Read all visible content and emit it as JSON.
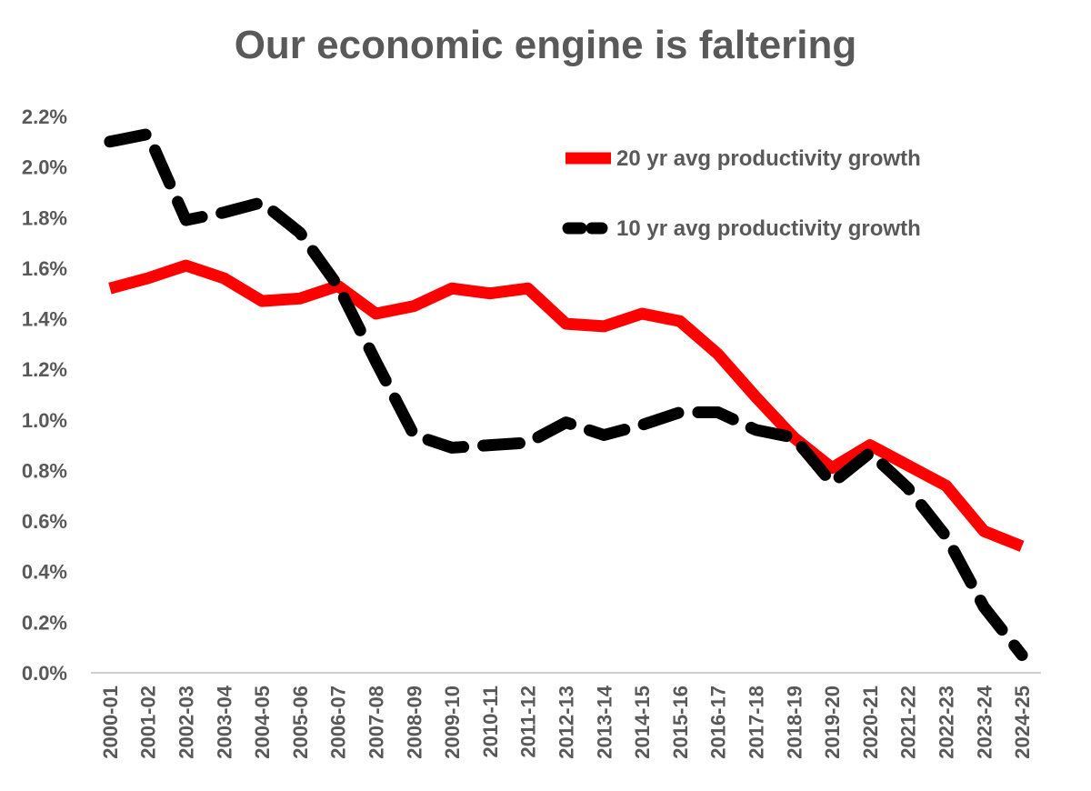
{
  "chart_data": {
    "type": "line",
    "title": "Our economic engine is faltering",
    "xlabel": "",
    "ylabel": "",
    "ylim": [
      0.0,
      2.2
    ],
    "yticks": [
      "0.0%",
      "0.2%",
      "0.4%",
      "0.6%",
      "0.8%",
      "1.0%",
      "1.2%",
      "1.4%",
      "1.6%",
      "1.8%",
      "2.0%",
      "2.2%"
    ],
    "grid": false,
    "legend_position": "top-right",
    "categories": [
      "2000-01",
      "2001-02",
      "2002-03",
      "2003-04",
      "2004-05",
      "2005-06",
      "2006-07",
      "2007-08",
      "2008-09",
      "2009-10",
      "2010-11",
      "2011-12",
      "2012-13",
      "2013-14",
      "2014-15",
      "2015-16",
      "2016-17",
      "2017-18",
      "2018-19",
      "2019-20",
      "2020-21",
      "2021-22",
      "2022-23",
      "2023-24",
      "2024-25"
    ],
    "series": [
      {
        "name": "20 yr avg productivity growth",
        "color": "#ff0000",
        "style": "solid",
        "values": [
          1.52,
          1.56,
          1.61,
          1.56,
          1.47,
          1.48,
          1.53,
          1.42,
          1.45,
          1.52,
          1.5,
          1.52,
          1.38,
          1.37,
          1.42,
          1.39,
          1.26,
          1.09,
          0.93,
          0.81,
          0.9,
          0.82,
          0.74,
          0.56,
          0.5
        ]
      },
      {
        "name": "10 yr avg productivity growth",
        "color": "#000000",
        "style": "dashed",
        "values": [
          2.1,
          2.13,
          1.79,
          1.82,
          1.86,
          1.74,
          1.53,
          1.23,
          0.94,
          0.89,
          0.9,
          0.91,
          0.99,
          0.94,
          0.98,
          1.03,
          1.03,
          0.96,
          0.93,
          0.75,
          0.87,
          0.73,
          0.54,
          0.26,
          0.07
        ]
      }
    ]
  }
}
